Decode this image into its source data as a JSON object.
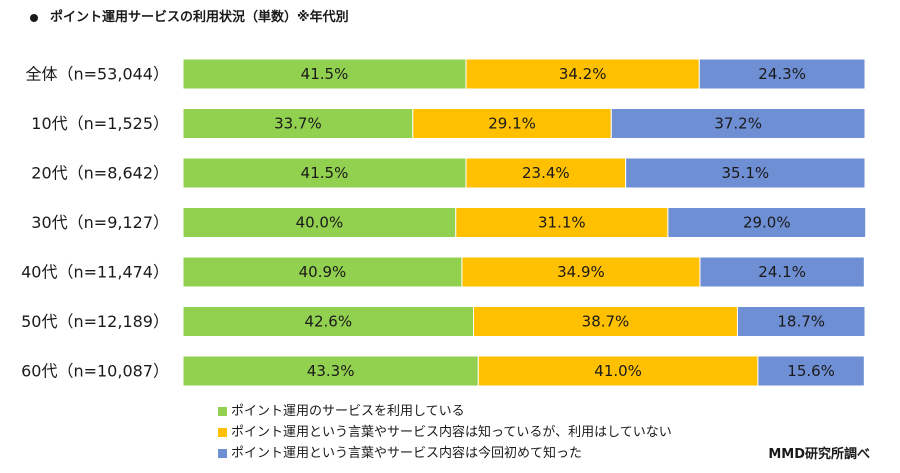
{
  "title": "ポイント運用サービスの利用状況（単数）※年代別",
  "source": "MMD研究所調べ",
  "chart_data": {
    "type": "bar",
    "orientation": "horizontal",
    "stacked": "100%",
    "categories": [
      "全体（n=53,044）",
      "10代（n=1,525）",
      "20代（n=8,642）",
      "30代（n=9,127）",
      "40代（n=11,474）",
      "50代（n=12,189）",
      "60代（n=10,087）"
    ],
    "series": [
      {
        "name": "ポイント運用のサービスを利用している",
        "color": "#92d050",
        "values": [
          41.5,
          33.7,
          41.5,
          40.0,
          40.9,
          42.6,
          43.3
        ]
      },
      {
        "name": "ポイント運用という言葉やサービス内容は知っているが、利用はしていない",
        "color": "#ffc000",
        "values": [
          34.2,
          29.1,
          23.4,
          31.1,
          34.9,
          38.7,
          41.0
        ]
      },
      {
        "name": "ポイント運用という言葉やサービス内容は今回初めて知った",
        "color": "#6f8fd4",
        "values": [
          24.3,
          37.2,
          35.1,
          29.0,
          24.1,
          18.7,
          15.6
        ]
      }
    ],
    "value_suffix": "%",
    "xlim": [
      0,
      100
    ],
    "legend_position": "bottom",
    "grid": false
  }
}
